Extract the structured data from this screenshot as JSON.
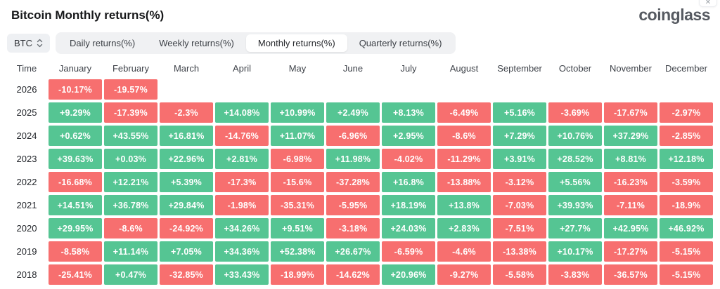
{
  "page": {
    "title": "Bitcoin Monthly returns(%)",
    "logo": "coinglass",
    "close_icon": "✕"
  },
  "controls": {
    "coin_selector": {
      "label": "BTC",
      "icon": "sort-arrows-icon"
    },
    "tabs": [
      {
        "label": "Daily returns(%)",
        "selected": false
      },
      {
        "label": "Weekly returns(%)",
        "selected": false
      },
      {
        "label": "Monthly returns(%)",
        "selected": true
      },
      {
        "label": "Quarterly returns(%)",
        "selected": false
      }
    ]
  },
  "colors": {
    "positive": "#55C593",
    "negative": "#F76F6F",
    "cell_text": "#ffffff"
  },
  "table": {
    "columns": [
      "Time",
      "January",
      "February",
      "March",
      "April",
      "May",
      "June",
      "July",
      "August",
      "September",
      "October",
      "November",
      "December"
    ],
    "rows": [
      {
        "year": "2026",
        "cells": [
          "-10.17%",
          "-19.57%",
          "",
          "",
          "",
          "",
          "",
          "",
          "",
          "",
          "",
          ""
        ]
      },
      {
        "year": "2025",
        "cells": [
          "+9.29%",
          "-17.39%",
          "-2.3%",
          "+14.08%",
          "+10.99%",
          "+2.49%",
          "+8.13%",
          "-6.49%",
          "+5.16%",
          "-3.69%",
          "-17.67%",
          "-2.97%"
        ]
      },
      {
        "year": "2024",
        "cells": [
          "+0.62%",
          "+43.55%",
          "+16.81%",
          "-14.76%",
          "+11.07%",
          "-6.96%",
          "+2.95%",
          "-8.6%",
          "+7.29%",
          "+10.76%",
          "+37.29%",
          "-2.85%"
        ]
      },
      {
        "year": "2023",
        "cells": [
          "+39.63%",
          "+0.03%",
          "+22.96%",
          "+2.81%",
          "-6.98%",
          "+11.98%",
          "-4.02%",
          "-11.29%",
          "+3.91%",
          "+28.52%",
          "+8.81%",
          "+12.18%"
        ]
      },
      {
        "year": "2022",
        "cells": [
          "-16.68%",
          "+12.21%",
          "+5.39%",
          "-17.3%",
          "-15.6%",
          "-37.28%",
          "+16.8%",
          "-13.88%",
          "-3.12%",
          "+5.56%",
          "-16.23%",
          "-3.59%"
        ]
      },
      {
        "year": "2021",
        "cells": [
          "+14.51%",
          "+36.78%",
          "+29.84%",
          "-1.98%",
          "-35.31%",
          "-5.95%",
          "+18.19%",
          "+13.8%",
          "-7.03%",
          "+39.93%",
          "-7.11%",
          "-18.9%"
        ]
      },
      {
        "year": "2020",
        "cells": [
          "+29.95%",
          "-8.6%",
          "-24.92%",
          "+34.26%",
          "+9.51%",
          "-3.18%",
          "+24.03%",
          "+2.83%",
          "-7.51%",
          "+27.7%",
          "+42.95%",
          "+46.92%"
        ]
      },
      {
        "year": "2019",
        "cells": [
          "-8.58%",
          "+11.14%",
          "+7.05%",
          "+34.36%",
          "+52.38%",
          "+26.67%",
          "-6.59%",
          "-4.6%",
          "-13.38%",
          "+10.17%",
          "-17.27%",
          "-5.15%"
        ]
      },
      {
        "year": "2018",
        "cells": [
          "-25.41%",
          "+0.47%",
          "-32.85%",
          "+33.43%",
          "-18.99%",
          "-14.62%",
          "+20.96%",
          "-9.27%",
          "-5.58%",
          "-3.83%",
          "-36.57%",
          "-5.15%"
        ]
      }
    ]
  }
}
